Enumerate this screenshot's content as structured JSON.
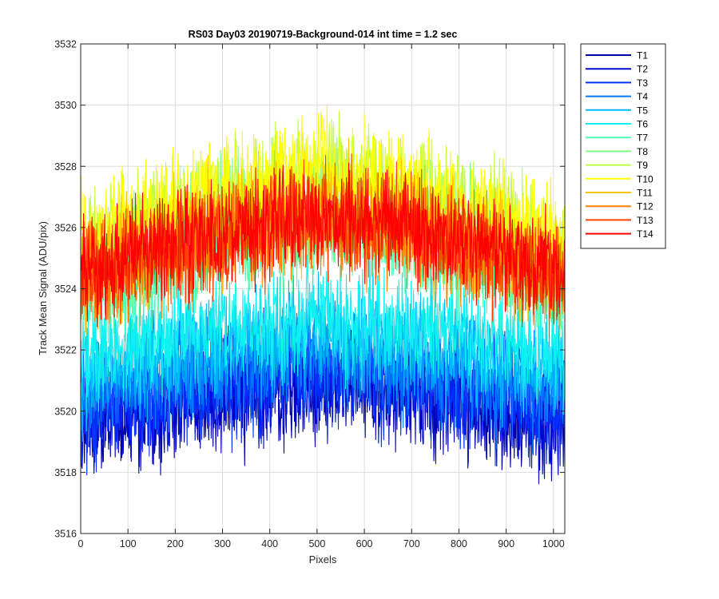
{
  "chart_data": {
    "type": "line",
    "title": "RS03 Day03 20190719-Background-014 int time = 1.2 sec",
    "xlabel": "Pixels",
    "ylabel": "Track Mean Signal (ADU/pix)",
    "xlim": [
      0,
      1024
    ],
    "ylim": [
      3516,
      3532
    ],
    "xticks": [
      0,
      100,
      200,
      300,
      400,
      500,
      600,
      700,
      800,
      900,
      1000
    ],
    "yticks": [
      3516,
      3518,
      3520,
      3522,
      3524,
      3526,
      3528,
      3530,
      3532
    ],
    "grid": true,
    "legend_position": "outside-top-right",
    "noise_amplitude_adu": 1.5,
    "series": [
      {
        "name": "T1",
        "color": "#0000a8",
        "baseline_adu": [
          3519.6,
          3520.1,
          3520.6,
          3520.9,
          3520.6,
          3520.1,
          3519.6
        ]
      },
      {
        "name": "T2",
        "color": "#0008cf",
        "baseline_adu": [
          3519.8,
          3520.3,
          3520.8,
          3521.1,
          3520.8,
          3520.3,
          3519.8
        ]
      },
      {
        "name": "T3",
        "color": "#0030ff",
        "baseline_adu": [
          3520.0,
          3520.5,
          3521.0,
          3521.3,
          3521.0,
          3520.5,
          3520.0
        ]
      },
      {
        "name": "T4",
        "color": "#0078ff",
        "baseline_adu": [
          3520.6,
          3521.1,
          3521.6,
          3521.9,
          3521.6,
          3521.1,
          3520.6
        ]
      },
      {
        "name": "T5",
        "color": "#00b8ff",
        "baseline_adu": [
          3521.2,
          3521.7,
          3522.2,
          3522.5,
          3522.2,
          3521.7,
          3521.2
        ]
      },
      {
        "name": "T6",
        "color": "#10f0f0",
        "baseline_adu": [
          3521.8,
          3522.3,
          3522.8,
          3523.1,
          3522.8,
          3522.3,
          3521.8
        ]
      },
      {
        "name": "T7",
        "color": "#50ffb0",
        "baseline_adu": [
          3523.8,
          3524.6,
          3525.6,
          3526.0,
          3525.6,
          3524.6,
          3523.8
        ]
      },
      {
        "name": "T8",
        "color": "#80ff80",
        "baseline_adu": [
          3524.6,
          3525.6,
          3526.6,
          3527.0,
          3526.6,
          3525.6,
          3524.6
        ]
      },
      {
        "name": "T9",
        "color": "#c0ff40",
        "baseline_adu": [
          3525.2,
          3526.3,
          3527.3,
          3527.8,
          3527.3,
          3526.3,
          3525.2
        ]
      },
      {
        "name": "T10",
        "color": "#ffff00",
        "baseline_adu": [
          3525.4,
          3526.4,
          3527.4,
          3527.9,
          3527.4,
          3526.4,
          3525.4
        ]
      },
      {
        "name": "T11",
        "color": "#ffc000",
        "baseline_adu": [
          3524.6,
          3525.4,
          3526.2,
          3526.6,
          3526.2,
          3525.4,
          3524.6
        ]
      },
      {
        "name": "T12",
        "color": "#ff8000",
        "baseline_adu": [
          3524.2,
          3525.0,
          3525.8,
          3526.2,
          3525.8,
          3525.0,
          3524.2
        ]
      },
      {
        "name": "T13",
        "color": "#ff4000",
        "baseline_adu": [
          3524.3,
          3525.1,
          3525.9,
          3526.3,
          3525.9,
          3525.1,
          3524.3
        ]
      },
      {
        "name": "T14",
        "color": "#ff0000",
        "baseline_adu": [
          3524.5,
          3525.3,
          3526.1,
          3526.5,
          3526.1,
          3525.3,
          3524.5
        ]
      }
    ],
    "baseline_x": [
      0,
      150,
      350,
      512,
      680,
      880,
      1024
    ]
  }
}
